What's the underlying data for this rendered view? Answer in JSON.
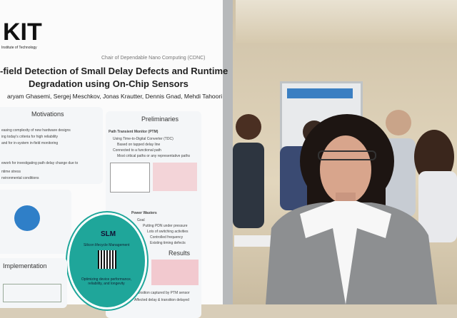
{
  "poster": {
    "logo": "KIT",
    "logo_subtitle": "Institute of Technology",
    "chair": "Chair of Dependable Nano Computing (CDNC)",
    "title_lines": [
      "-field Detection of Small Delay Defects and Runtime",
      "Degradation using On-Chip Sensors"
    ],
    "authors": "aryam Ghasemi, Sergej Meschkov, Jonas Krautter, Dennis Gnad, Mehdi Tahoori",
    "motivations": {
      "heading": "Motivations",
      "items": [
        "easing complexity of new hardware designs",
        "ing today's criteria for high reliability",
        "and for in-system in-field monitoring",
        "ework for investigating path delay change due to",
        "ntime stress",
        "nvironmental conditions"
      ]
    },
    "preliminaries": {
      "heading": "Preliminaries",
      "subheading": "Path Transient Monitor (PTM)",
      "items": [
        "Using Time-to-Digital Converter (TDC)",
        "Based on tapped delay line",
        "Connected to a functional path",
        "Most critical paths or any representative paths"
      ]
    },
    "power_wasters": {
      "heading": "Power Wasters",
      "items": [
        "Goal",
        "Putting PDN under pressure",
        "Lots of switching activities",
        "Controlled frequency",
        "Existing timing defects"
      ]
    },
    "slm": {
      "heading": "SLM",
      "subtitle": "Silicon lifecycle Management",
      "caption": "Optimizing device performance, reliability, and longevity"
    },
    "implementation": {
      "heading": "Implementation"
    },
    "results": {
      "heading": "Results",
      "items": [
        "Transition captured by PTM sensor",
        "Affected delay & transition delayed"
      ]
    }
  }
}
